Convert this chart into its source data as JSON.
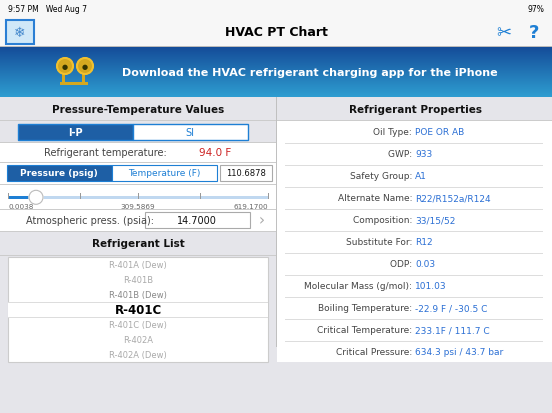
{
  "bg_color": "#e5e5ea",
  "status_bar_text": "9:57 PM   Wed Aug 7",
  "status_bar_right": "97%",
  "title_text": "HVAC PT Chart",
  "banner_text": "Download the HVAC refrigerant charging app for the iPhone",
  "left_section_title": "Pressure-Temperature Values",
  "tab_ip_bg": "#1e5fa5",
  "tab_ip_text": "I-P",
  "tab_si_text": "SI",
  "tab_text_color_inactive": "#1e7fd4",
  "tab_border_color": "#1e7fd4",
  "ref_temp_label": "Refrigerant temperature:",
  "ref_temp_value": "94.0 F",
  "ref_temp_value_color": "#cc2222",
  "btn_pressure_bg": "#1e5fa5",
  "btn_pressure_text": "Pressure (psig)",
  "btn_temp_text": "Temperature (F)",
  "btn_temp_color": "#1e7fd4",
  "input_value": "110.6878",
  "slider_min": "0.0038",
  "slider_mid": "309.5869",
  "slider_max": "619.1700",
  "slider_track_color": "#1e7fd4",
  "atm_press_label": "Atmospheric press. (psia):",
  "atm_press_value": "14.7000",
  "ref_list_title": "Refrigerant List",
  "ref_list_items": [
    "R-401A (Dew)",
    "R-401B",
    "R-401B (Dew)",
    "R-401C",
    "R-401C (Dew)",
    "R-402A",
    "R-402A (Dew)"
  ],
  "ref_list_selected": "R-401C",
  "ref_list_selected_color": "#000000",
  "ref_list_other_color": "#aaaaaa",
  "divider_color": "#cccccc",
  "right_section_title": "Refrigerant Properties",
  "props": [
    {
      "label": "Oil Type:",
      "value": "POE OR AB"
    },
    {
      "label": "GWP:",
      "value": "933"
    },
    {
      "label": "Safety Group:",
      "value": "A1"
    },
    {
      "label": "Alternate Name:",
      "value": "R22/R152a/R124"
    },
    {
      "label": "Composition:",
      "value": "33/15/52"
    },
    {
      "label": "Substitute For:",
      "value": "R12"
    },
    {
      "label": "ODP:",
      "value": "0.03"
    },
    {
      "label": "Molecular Mass (g/mol):",
      "value": "101.03"
    },
    {
      "label": "Boiling Temperature:",
      "value": "-22.9 F / -30.5 C"
    },
    {
      "label": "Critical Temperature:",
      "value": "233.1F / 111.7 C"
    },
    {
      "label": "Critical Pressure:",
      "value": "634.3 psi / 43.7 bar"
    }
  ],
  "prop_label_color": "#444444",
  "prop_value_color": "#2b6fd4",
  "prop_divider_color": "#dddddd",
  "section_header_bg": "#e5e5ea",
  "right_panel_bg": "#ffffff"
}
